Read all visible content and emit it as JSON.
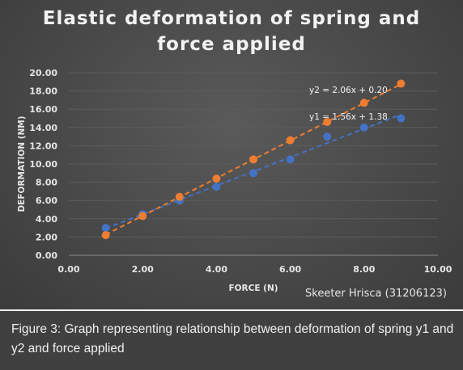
{
  "colors": {
    "y1": "#4472c4",
    "y2": "#ed7d31",
    "grid": "#5c5c5c",
    "axis": "#8a8a8a"
  },
  "caption": {
    "text": "Figure 3: Graph representing relationship between deformation of spring y1 and y2 and force applied"
  },
  "chart_data": {
    "type": "scatter",
    "title_lines": [
      "Elastic deformation of spring and",
      "force applied"
    ],
    "xlabel": "FORCE (N)",
    "ylabel": "DEFORMATION (NM)",
    "xlim": [
      0,
      10
    ],
    "ylim": [
      0,
      20
    ],
    "x_ticks": [
      "0.00",
      "2.00",
      "4.00",
      "6.00",
      "8.00",
      "10.00"
    ],
    "y_ticks": [
      "0.00",
      "2.00",
      "4.00",
      "6.00",
      "8.00",
      "10.00",
      "12.00",
      "14.00",
      "16.00",
      "18.00",
      "20.00"
    ],
    "grid": true,
    "credit": "Skeeter Hrisca (31206123)",
    "series": [
      {
        "key": "y1",
        "x": [
          1,
          2,
          3,
          4,
          5,
          6,
          7,
          8,
          9
        ],
        "y": [
          3.0,
          4.5,
          6.0,
          7.5,
          9.0,
          10.5,
          13.0,
          14.0,
          15.0
        ],
        "trendline": {
          "slope": 1.56,
          "intercept": 1.38,
          "label": "y1 = 1.56x + 1.38"
        }
      },
      {
        "key": "y2",
        "x": [
          1,
          2,
          3,
          4,
          5,
          6,
          7,
          8,
          9
        ],
        "y": [
          2.2,
          4.3,
          6.4,
          8.4,
          10.5,
          12.6,
          14.6,
          16.7,
          18.8
        ],
        "trendline": {
          "slope": 2.06,
          "intercept": 0.2,
          "label": "y2 = 2.06x + 0.20"
        }
      }
    ]
  }
}
